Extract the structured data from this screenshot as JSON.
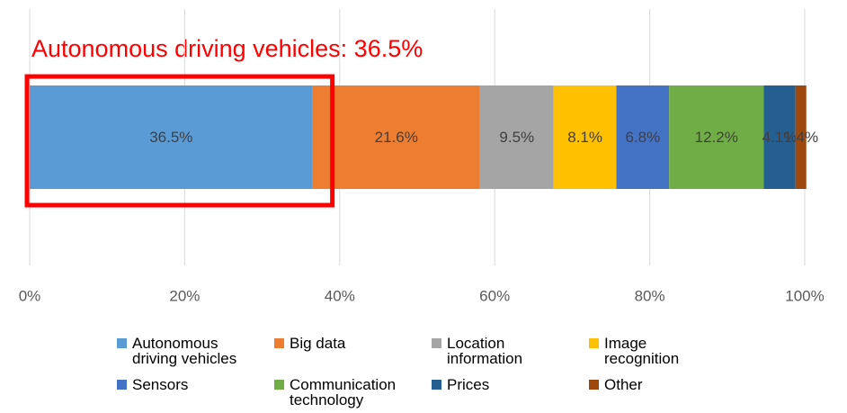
{
  "chart_data": {
    "type": "bar",
    "orientation": "horizontal",
    "stacked": true,
    "annotation": "Autonomous driving vehicles: 36.5%",
    "series": [
      {
        "name": "Autonomous driving vehicles",
        "color": "#5b9bd5",
        "values": [
          36.5
        ],
        "value_labels": [
          "36.5%"
        ]
      },
      {
        "name": "Big data",
        "color": "#ed7d31",
        "values": [
          21.6
        ],
        "value_labels": [
          "21.6%"
        ]
      },
      {
        "name": "Location information",
        "color": "#a5a5a5",
        "values": [
          9.5
        ],
        "value_labels": [
          "9.5%"
        ]
      },
      {
        "name": "Image recognition",
        "color": "#ffc000",
        "values": [
          8.1
        ],
        "value_labels": [
          "8.1%"
        ]
      },
      {
        "name": "Sensors",
        "color": "#4472c4",
        "values": [
          6.8
        ],
        "value_labels": [
          "6.8%"
        ]
      },
      {
        "name": "Communication technology",
        "color": "#70ad47",
        "values": [
          12.2
        ],
        "value_labels": [
          "12.2%"
        ]
      },
      {
        "name": "Prices",
        "color": "#255e91",
        "values": [
          4.1
        ],
        "value_labels": [
          "4.1%"
        ]
      },
      {
        "name": "Other",
        "color": "#9e480e",
        "values": [
          1.4
        ],
        "value_labels": [
          "1.4%"
        ]
      }
    ],
    "xlim": [
      0,
      100
    ],
    "xticks": [
      {
        "value": 0,
        "label": "0%"
      },
      {
        "value": 20,
        "label": "20%"
      },
      {
        "value": 40,
        "label": "40%"
      },
      {
        "value": 60,
        "label": "60%"
      },
      {
        "value": 80,
        "label": "80%"
      },
      {
        "value": 100,
        "label": "100%"
      }
    ],
    "grid": true,
    "legend": "bottom"
  }
}
